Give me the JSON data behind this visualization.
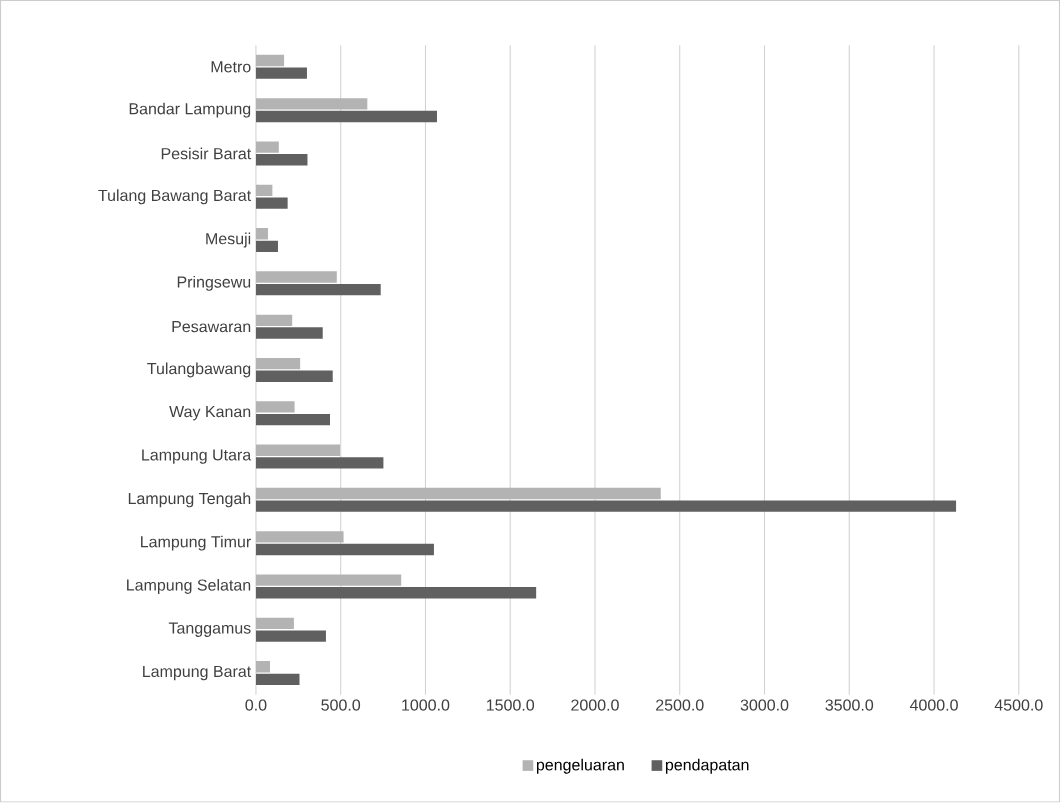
{
  "chart_data": {
    "type": "bar",
    "orientation": "horizontal",
    "categories": [
      "Metro",
      "Bandar Lampung",
      "Pesisir Barat",
      "Tulang Bawang Barat",
      "Mesuji",
      "Pringsewu",
      "Pesawaran",
      "Tulangbawang",
      "Way Kanan",
      "Lampung Utara",
      "Lampung Tengah",
      "Lampung Timur",
      "Lampung Selatan",
      "Tanggamus",
      "Lampung Barat"
    ],
    "series": [
      {
        "name": "pengeluaran",
        "color": "#b3b3b3",
        "values": [
          166,
          657,
          135,
          97,
          71,
          477,
          214,
          261,
          228,
          496,
          2388,
          517,
          857,
          224,
          83
        ]
      },
      {
        "name": "pendapatan",
        "color": "#606060",
        "values": [
          301,
          1068,
          304,
          187,
          130,
          736,
          394,
          453,
          437,
          752,
          4130,
          1050,
          1653,
          413,
          257
        ]
      }
    ],
    "xlim": [
      0,
      4500
    ],
    "xticks": [
      {
        "value": 0,
        "label": "0.0"
      },
      {
        "value": 500,
        "label": "500.0"
      },
      {
        "value": 1000,
        "label": "1000.0"
      },
      {
        "value": 1500,
        "label": "1500.0"
      },
      {
        "value": 2000,
        "label": "2000.0"
      },
      {
        "value": 2500,
        "label": "2500.0"
      },
      {
        "value": 3000,
        "label": "3000.0"
      },
      {
        "value": 3500,
        "label": "3500.0"
      },
      {
        "value": 4000,
        "label": "4000.0"
      },
      {
        "value": 4500,
        "label": "4500.0"
      }
    ],
    "grid": "x",
    "legend": "bottom"
  }
}
